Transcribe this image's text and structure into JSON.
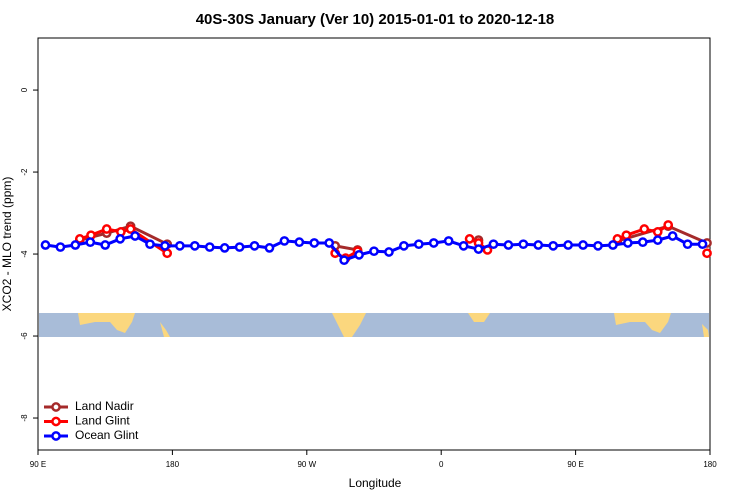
{
  "chart_data": {
    "type": "line",
    "title": "40S-30S January (Ver 10)   2015-01-01 to 2020-12-18",
    "x_label": "Longitude",
    "y_label": "XCO2 - MLO trend (ppm)",
    "xlim": [
      90,
      540
    ],
    "xticks": [
      {
        "value": 90,
        "label": "90 E"
      },
      180,
      {
        "value": 270,
        "label": "90 W"
      },
      {
        "value": 360,
        "label": "0"
      },
      {
        "value": 450,
        "label": "90 E"
      },
      {
        "value": 540,
        "label": "180"
      }
    ],
    "ylim": [
      -8.78,
      1.27
    ],
    "yticks": [
      0,
      -2,
      -4,
      -6,
      -8
    ],
    "legend": "lower left",
    "series": [
      {
        "name": "Land Nadir",
        "color": "#a52a2a",
        "x": [
          118,
          136,
          152,
          176.5,
          null,
          289,
          304,
          null,
          385,
          null,
          478,
          512,
          538
        ],
        "values": [
          -3.66,
          -3.49,
          -3.32,
          -3.76,
          null,
          -3.8,
          -3.9,
          null,
          -3.66,
          null,
          -3.68,
          -3.32,
          -3.73
        ]
      },
      {
        "name": "Land Glint",
        "color": "#ff0000",
        "x": [
          118,
          125.5,
          136,
          145.5,
          152,
          176.5,
          null,
          289,
          296,
          304,
          null,
          379,
          385,
          391,
          null,
          478,
          484,
          496,
          505,
          512,
          null,
          538
        ],
        "values": [
          -3.63,
          -3.54,
          -3.39,
          -3.46,
          -3.39,
          -3.98,
          null,
          -3.98,
          -4.1,
          -3.93,
          null,
          -3.63,
          -3.73,
          -3.9,
          null,
          -3.63,
          -3.54,
          -3.39,
          -3.46,
          -3.29,
          null,
          -3.98
        ]
      },
      {
        "name": "Ocean Glint",
        "color": "#0000ff",
        "x": [
          95,
          105,
          115,
          125,
          135,
          145,
          155,
          165,
          175,
          185,
          195,
          205,
          215,
          225,
          235,
          245,
          255,
          265,
          275,
          285,
          295,
          305,
          315,
          325,
          335,
          345,
          355,
          365,
          375,
          385,
          395,
          405,
          415,
          425,
          435,
          445,
          455,
          465,
          475,
          485,
          495,
          505,
          515,
          525,
          535
        ],
        "values": [
          -3.78,
          -3.83,
          -3.78,
          -3.71,
          -3.78,
          -3.63,
          -3.56,
          -3.76,
          -3.8,
          -3.8,
          -3.8,
          -3.83,
          -3.85,
          -3.83,
          -3.8,
          -3.85,
          -3.68,
          -3.71,
          -3.73,
          -3.73,
          -4.15,
          -4.02,
          -3.93,
          -3.95,
          -3.8,
          -3.76,
          -3.73,
          -3.68,
          -3.8,
          -3.88,
          -3.76,
          -3.78,
          -3.76,
          -3.78,
          -3.8,
          -3.78,
          -3.78,
          -3.8,
          -3.78,
          -3.73,
          -3.71,
          -3.66,
          -3.56,
          -3.76,
          -3.76
        ]
      }
    ]
  }
}
